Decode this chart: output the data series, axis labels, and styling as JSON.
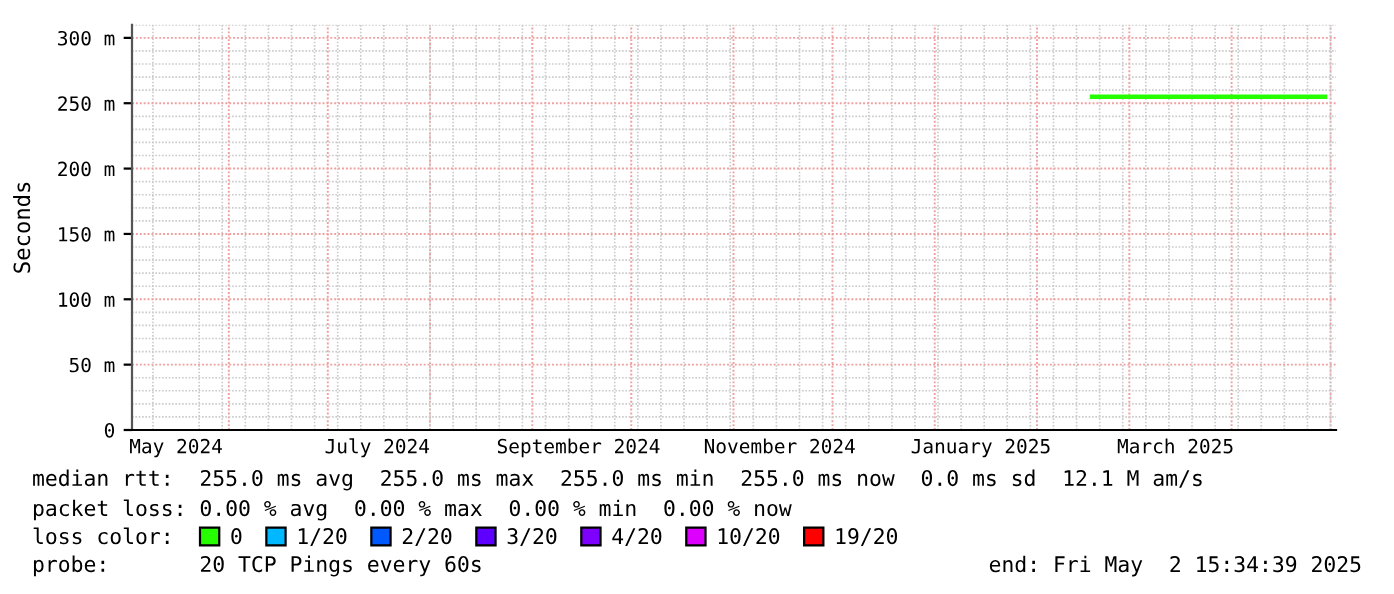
{
  "chart_data": {
    "type": "line",
    "ylabel": "Seconds",
    "xlim": [
      "2024-05-02T15:34",
      "2025-05-02T15:34"
    ],
    "xticks": [
      {
        "value": "2024-05-16",
        "label": "May 2024"
      },
      {
        "value": "2024-07-16",
        "label": "July 2024"
      },
      {
        "value": "2024-09-15",
        "label": "September 2024"
      },
      {
        "value": "2024-11-15",
        "label": "November 2024"
      },
      {
        "value": "2025-01-15",
        "label": "January 2025"
      },
      {
        "value": "2025-03-15",
        "label": "March 2025"
      }
    ],
    "ylim": [
      0,
      310
    ],
    "yticks": [
      0,
      {
        "value": 50,
        "label": "50 m"
      },
      {
        "value": 100,
        "label": "100 m"
      },
      {
        "value": 150,
        "label": "150 m"
      },
      {
        "value": 200,
        "label": "200 m"
      },
      {
        "value": 250,
        "label": "250 m"
      },
      {
        "value": 300,
        "label": "300 m"
      }
    ],
    "grid": true,
    "legend": "bottom",
    "legend_title": "loss color:",
    "series": [
      {
        "name": "0",
        "color": "#26ff00",
        "x": [
          "2025-02-17",
          "2025-04-30"
        ],
        "values": [
          255,
          255
        ]
      },
      {
        "name": "1/20",
        "color": "#00b8ff"
      },
      {
        "name": "2/20",
        "color": "#0059ff"
      },
      {
        "name": "3/20",
        "color": "#5e00ff"
      },
      {
        "name": "4/20",
        "color": "#7e00ff"
      },
      {
        "name": "10/20",
        "color": "#dd00ff"
      },
      {
        "name": "19/20",
        "color": "#ff0000"
      }
    ],
    "annotations": [
      "median rtt:  255.0 ms avg  255.0 ms max  255.0 ms min  255.0 ms now  0.0 ms sd  12.1 M am/s",
      "packet loss: 0.00 % avg  0.00 % max  0.00 % min  0.00 % now",
      "probe:       20 TCP Pings every 60s",
      "end: Fri May  2 15:34:39 2025"
    ]
  }
}
